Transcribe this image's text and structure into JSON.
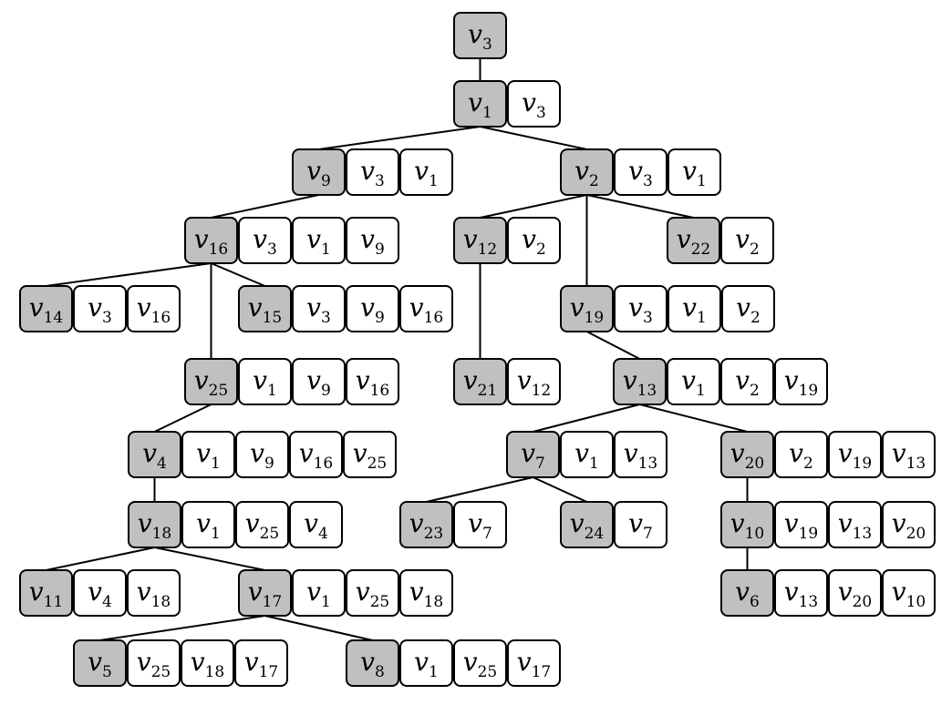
{
  "colors": {
    "head_fill": "#c0c0c0",
    "cell_fill": "#ffffff",
    "stroke": "#000000"
  },
  "letter": "v",
  "root": "3",
  "nodes": [
    {
      "id": "3",
      "parent": null,
      "separator": []
    },
    {
      "id": "1",
      "parent": "3",
      "separator": [
        "3"
      ]
    },
    {
      "id": "9",
      "parent": "1",
      "separator": [
        "3",
        "1"
      ]
    },
    {
      "id": "2",
      "parent": "1",
      "separator": [
        "3",
        "1"
      ]
    },
    {
      "id": "16",
      "parent": "9",
      "separator": [
        "3",
        "1",
        "9"
      ]
    },
    {
      "id": "12",
      "parent": "2",
      "separator": [
        "2"
      ]
    },
    {
      "id": "22",
      "parent": "2",
      "separator": [
        "2"
      ]
    },
    {
      "id": "19",
      "parent": "2",
      "separator": [
        "3",
        "1",
        "2"
      ]
    },
    {
      "id": "14",
      "parent": "16",
      "separator": [
        "3",
        "16"
      ]
    },
    {
      "id": "15",
      "parent": "16",
      "separator": [
        "3",
        "9",
        "16"
      ]
    },
    {
      "id": "25",
      "parent": "16",
      "separator": [
        "1",
        "9",
        "16"
      ]
    },
    {
      "id": "21",
      "parent": "12",
      "separator": [
        "12"
      ]
    },
    {
      "id": "13",
      "parent": "19",
      "separator": [
        "1",
        "2",
        "19"
      ]
    },
    {
      "id": "4",
      "parent": "25",
      "separator": [
        "1",
        "9",
        "16",
        "25"
      ]
    },
    {
      "id": "7",
      "parent": "13",
      "separator": [
        "1",
        "13"
      ]
    },
    {
      "id": "20",
      "parent": "13",
      "separator": [
        "2",
        "19",
        "13"
      ]
    },
    {
      "id": "18",
      "parent": "4",
      "separator": [
        "1",
        "25",
        "4"
      ]
    },
    {
      "id": "23",
      "parent": "7",
      "separator": [
        "7"
      ]
    },
    {
      "id": "24",
      "parent": "7",
      "separator": [
        "7"
      ]
    },
    {
      "id": "10",
      "parent": "20",
      "separator": [
        "19",
        "13",
        "20"
      ]
    },
    {
      "id": "11",
      "parent": "18",
      "separator": [
        "4",
        "18"
      ]
    },
    {
      "id": "17",
      "parent": "18",
      "separator": [
        "1",
        "25",
        "18"
      ]
    },
    {
      "id": "6",
      "parent": "10",
      "separator": [
        "13",
        "20",
        "10"
      ]
    },
    {
      "id": "5",
      "parent": "17",
      "separator": [
        "25",
        "18",
        "17"
      ]
    },
    {
      "id": "8",
      "parent": "17",
      "separator": [
        "1",
        "25",
        "17"
      ]
    }
  ]
}
